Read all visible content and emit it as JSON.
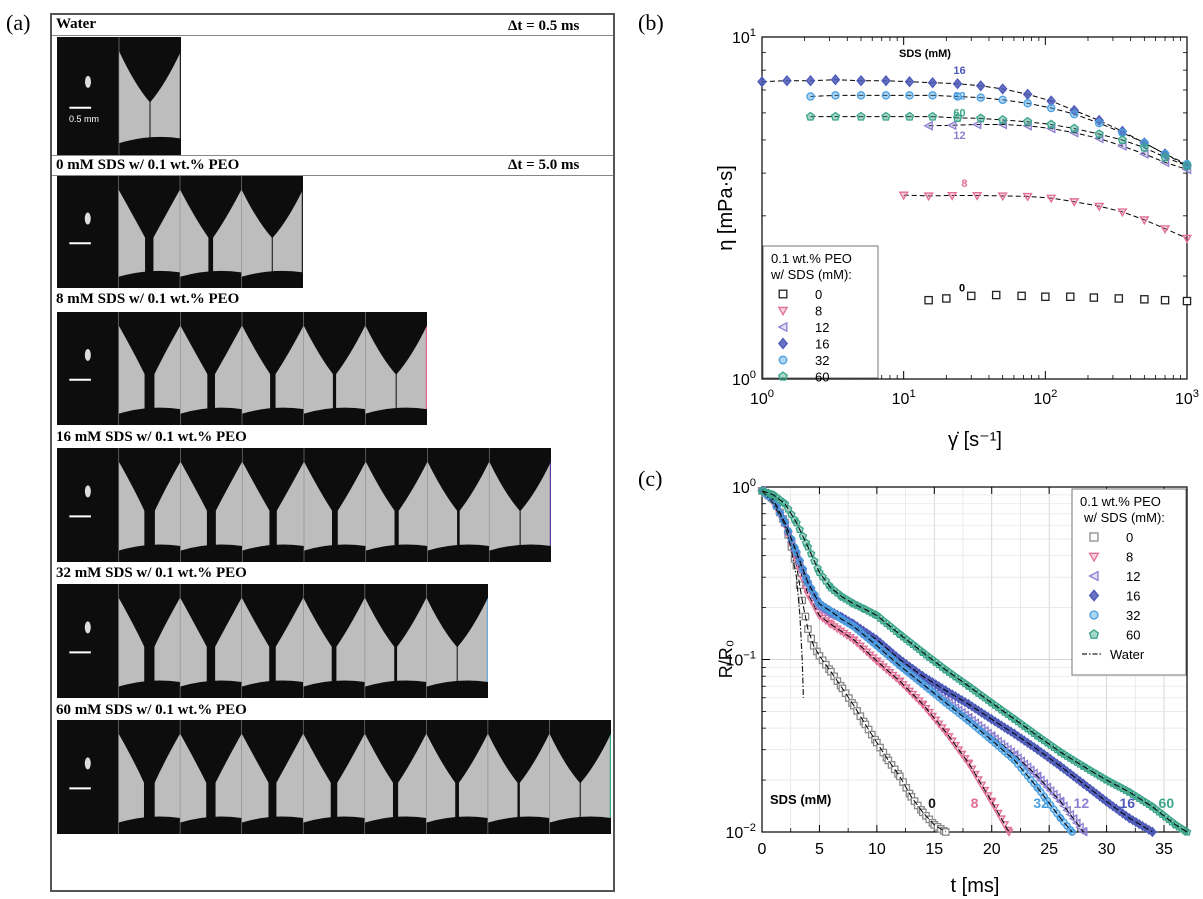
{
  "panel_a": {
    "letter": "(a)",
    "strips": [
      {
        "label": "Water",
        "dt": "Δt = 0.5 ms",
        "frames": 2,
        "scale": "0.5 mm",
        "border": "#222222"
      },
      {
        "label": "0 mM SDS w/ 0.1 wt.% PEO",
        "dt": "Δt = 5.0 ms",
        "frames": 4,
        "border": "#222222"
      },
      {
        "label": "8 mM SDS w/ 0.1 wt.% PEO",
        "frames": 6,
        "border": "#e0668a"
      },
      {
        "label": "16 mM SDS w/ 0.1 wt.% PEO",
        "frames": 8,
        "border": "#5a3f9a"
      },
      {
        "label": "32 mM SDS w/ 0.1 wt.% PEO",
        "frames": 7,
        "border": "#6aa9d8"
      },
      {
        "label": "60 mM SDS w/ 0.1 wt.% PEO",
        "frames": 9,
        "border": "#3aa58a"
      }
    ]
  },
  "panel_b": {
    "letter": "(b)"
  },
  "panel_c": {
    "letter": "(c)"
  },
  "chart_data": [
    {
      "type": "scatter",
      "xlabel": "γ̇ [s⁻¹]",
      "ylabel": "η [mPa·s]",
      "x_scale": "log",
      "y_scale": "log",
      "xlim": [
        1,
        1000
      ],
      "ylim": [
        1,
        10
      ],
      "x_ticks": [
        "10⁰",
        "10¹",
        "10²",
        "10³"
      ],
      "y_ticks": [
        "10⁰",
        "10¹"
      ],
      "annotation_title": "SDS (mM)",
      "legend_title": [
        "0.1 wt.% PEO",
        "w/ SDS (mM):"
      ],
      "legend_position": "bottom-left",
      "series": [
        {
          "name": "0",
          "marker": "square",
          "color": "#222222",
          "label": "0",
          "x": [
            15,
            20,
            30,
            45,
            68,
            100,
            150,
            220,
            330,
            500,
            700,
            1000
          ],
          "y": [
            1.7,
            1.72,
            1.75,
            1.76,
            1.75,
            1.74,
            1.74,
            1.73,
            1.72,
            1.71,
            1.7,
            1.69
          ]
        },
        {
          "name": "8",
          "marker": "tri-down",
          "color": "#e26d96",
          "label": "8",
          "x": [
            10,
            15,
            22,
            33,
            50,
            75,
            110,
            160,
            240,
            350,
            500,
            700,
            1000
          ],
          "y": [
            3.45,
            3.43,
            3.44,
            3.44,
            3.43,
            3.42,
            3.38,
            3.3,
            3.2,
            3.08,
            2.92,
            2.75,
            2.58
          ]
        },
        {
          "name": "12",
          "marker": "tri-left",
          "color": "#8c7fd0",
          "label": "12",
          "x": [
            15,
            22,
            33,
            50,
            75,
            110,
            160,
            240,
            350,
            500,
            700,
            1000
          ],
          "y": [
            5.5,
            5.52,
            5.55,
            5.55,
            5.5,
            5.4,
            5.25,
            5.05,
            4.8,
            4.55,
            4.3,
            4.1
          ]
        },
        {
          "name": "16",
          "marker": "diamond",
          "color": "#4d5ab8",
          "label": "16",
          "x": [
            1,
            1.5,
            2.2,
            3.3,
            5,
            7.5,
            11,
            16,
            24,
            35,
            50,
            75,
            110,
            160,
            240,
            350,
            500,
            700,
            1000
          ],
          "y": [
            7.4,
            7.45,
            7.45,
            7.5,
            7.45,
            7.45,
            7.4,
            7.35,
            7.3,
            7.2,
            7.05,
            6.8,
            6.5,
            6.1,
            5.7,
            5.3,
            4.9,
            4.55,
            4.2
          ]
        },
        {
          "name": "32",
          "marker": "circle",
          "color": "#4a9fe0",
          "label": "32",
          "x": [
            2.2,
            3.3,
            5,
            7.5,
            11,
            16,
            24,
            35,
            50,
            75,
            110,
            160,
            240,
            350,
            500,
            700,
            1000
          ],
          "y": [
            6.7,
            6.75,
            6.75,
            6.75,
            6.75,
            6.75,
            6.7,
            6.65,
            6.55,
            6.4,
            6.2,
            5.95,
            5.6,
            5.25,
            4.9,
            4.55,
            4.25
          ]
        },
        {
          "name": "60",
          "marker": "pentagon",
          "color": "#3ba58a",
          "label": "60",
          "x": [
            2.2,
            3.3,
            5,
            7.5,
            11,
            16,
            24,
            35,
            50,
            75,
            110,
            160,
            240,
            350,
            500,
            700,
            1000
          ],
          "y": [
            5.85,
            5.85,
            5.85,
            5.85,
            5.85,
            5.85,
            5.8,
            5.78,
            5.72,
            5.65,
            5.55,
            5.4,
            5.2,
            5.0,
            4.75,
            4.45,
            4.2
          ]
        }
      ]
    },
    {
      "type": "scatter",
      "xlabel": "t [ms]",
      "ylabel": "R/R₀",
      "y_scale": "log",
      "xlim": [
        0,
        37
      ],
      "ylim": [
        0.01,
        1
      ],
      "x_ticks": [
        "0",
        "5",
        "10",
        "15",
        "20",
        "25",
        "30",
        "35"
      ],
      "y_ticks": [
        "10⁻²",
        "10⁻¹",
        "10⁰"
      ],
      "grid": true,
      "annotation_title": "SDS (mM)",
      "legend_title": [
        "0.1 wt.% PEO",
        "w/ SDS (mM):"
      ],
      "legend_position": "top-right",
      "series": [
        {
          "name": "0",
          "marker": "square",
          "color": "#8a8a8a",
          "end_label": "0",
          "label_color": "#111111",
          "x": [
            0,
            1,
            2,
            3,
            3.5,
            4,
            4.5,
            5,
            6,
            7,
            8,
            9,
            10,
            11,
            12,
            13,
            14,
            15,
            16
          ],
          "y": [
            0.95,
            0.85,
            0.62,
            0.35,
            0.22,
            0.15,
            0.12,
            0.105,
            0.085,
            0.068,
            0.054,
            0.042,
            0.033,
            0.026,
            0.021,
            0.016,
            0.013,
            0.011,
            0.01
          ]
        },
        {
          "name": "8",
          "marker": "tri-down",
          "color": "#e26d96",
          "end_label": "8",
          "label_color": "#e26d96",
          "x": [
            0,
            1,
            2,
            3,
            4,
            5,
            6,
            8,
            10,
            12,
            14,
            16,
            18,
            20,
            21.5
          ],
          "y": [
            0.95,
            0.82,
            0.6,
            0.38,
            0.24,
            0.18,
            0.16,
            0.13,
            0.098,
            0.075,
            0.055,
            0.038,
            0.025,
            0.015,
            0.01
          ]
        },
        {
          "name": "12",
          "marker": "tri-left",
          "color": "#8c7fd0",
          "end_label": "12",
          "label_color": "#8c7fd0",
          "x": [
            0,
            1,
            2,
            3,
            4,
            5,
            6,
            7,
            8,
            10,
            12,
            14,
            16,
            18,
            20,
            22,
            24,
            26,
            28
          ],
          "y": [
            0.95,
            0.83,
            0.6,
            0.4,
            0.27,
            0.2,
            0.18,
            0.17,
            0.155,
            0.12,
            0.092,
            0.072,
            0.058,
            0.046,
            0.036,
            0.028,
            0.021,
            0.015,
            0.01
          ]
        },
        {
          "name": "16",
          "marker": "diamond",
          "color": "#4d5ab8",
          "end_label": "16",
          "label_color": "#4d5ab8",
          "x": [
            0,
            1,
            2,
            3,
            4,
            5,
            6,
            7,
            8,
            10,
            12,
            14,
            16,
            18,
            20,
            22,
            24,
            26,
            28,
            30,
            32,
            34
          ],
          "y": [
            0.95,
            0.84,
            0.62,
            0.42,
            0.28,
            0.21,
            0.19,
            0.175,
            0.16,
            0.13,
            0.1,
            0.08,
            0.066,
            0.055,
            0.045,
            0.037,
            0.03,
            0.024,
            0.019,
            0.015,
            0.012,
            0.01
          ]
        },
        {
          "name": "32",
          "marker": "circle",
          "color": "#4a9fe0",
          "end_label": "32",
          "label_color": "#4a9fe0",
          "x": [
            0,
            1,
            2,
            3,
            4,
            5,
            6,
            7,
            8,
            10,
            12,
            14,
            16,
            18,
            20,
            22,
            24,
            26,
            27
          ],
          "y": [
            0.95,
            0.84,
            0.62,
            0.42,
            0.28,
            0.21,
            0.19,
            0.17,
            0.155,
            0.12,
            0.092,
            0.072,
            0.056,
            0.044,
            0.034,
            0.026,
            0.018,
            0.012,
            0.01
          ]
        },
        {
          "name": "60",
          "marker": "pentagon",
          "color": "#3ba58a",
          "end_label": "60",
          "label_color": "#3ba58a",
          "x": [
            0,
            1,
            2,
            3,
            4,
            5,
            6,
            7,
            8,
            9,
            10,
            12,
            14,
            16,
            18,
            20,
            22,
            24,
            26,
            28,
            30,
            32,
            34,
            36,
            37
          ],
          "y": [
            0.95,
            0.9,
            0.8,
            0.62,
            0.45,
            0.32,
            0.26,
            0.23,
            0.21,
            0.195,
            0.18,
            0.14,
            0.11,
            0.087,
            0.07,
            0.056,
            0.045,
            0.036,
            0.029,
            0.024,
            0.02,
            0.017,
            0.014,
            0.011,
            0.01
          ]
        },
        {
          "name": "Water",
          "marker": "none",
          "line": "dash-dot",
          "color": "#222222",
          "x": [
            0,
            1,
            2,
            2.5,
            3,
            3.3,
            3.5,
            3.6
          ],
          "y": [
            0.95,
            0.8,
            0.6,
            0.45,
            0.3,
            0.18,
            0.1,
            0.06
          ]
        }
      ]
    }
  ]
}
